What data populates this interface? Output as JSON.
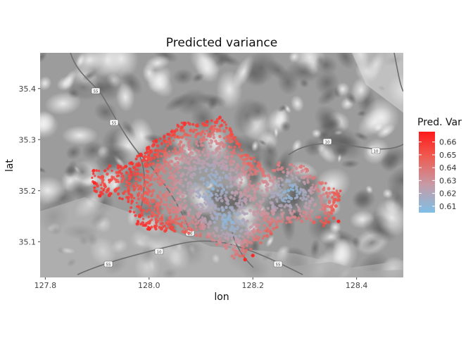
{
  "chart_data": {
    "type": "scatter",
    "title": "Predicted variance",
    "xlabel": "lon",
    "ylabel": "lat",
    "xlim": [
      127.79,
      128.49
    ],
    "ylim": [
      35.03,
      35.47
    ],
    "x_ticks": [
      127.8,
      128.0,
      128.2,
      128.4
    ],
    "y_ticks": [
      35.1,
      35.2,
      35.3,
      35.4
    ],
    "x_tick_labels": [
      "127.8",
      "128.0",
      "128.2",
      "128.4"
    ],
    "y_tick_labels": [
      "35.1",
      "35.2",
      "35.3",
      "35.4"
    ],
    "basemap": "grayscale terrain relief with roads",
    "road_shields": [
      "55",
      "55",
      "10",
      "10",
      "55",
      "10",
      "10",
      "55"
    ],
    "legend": {
      "title": "Pred. Var",
      "position": "right",
      "range": [
        0.605,
        0.668
      ],
      "ticks": [
        0.61,
        0.62,
        0.63,
        0.64,
        0.65,
        0.66
      ],
      "tick_labels": [
        "0.61",
        "0.62",
        "0.63",
        "0.64",
        "0.65",
        "0.66"
      ],
      "low_color": "#7fbfe6",
      "high_color": "#ff1a1a"
    },
    "regions": [
      {
        "name": "low-variance core",
        "lon": 128.12,
        "lat": 35.21,
        "value": 0.612
      },
      {
        "name": "low-variance east",
        "lon": 128.27,
        "lat": 35.2,
        "value": 0.614
      },
      {
        "name": "low-variance south",
        "lon": 128.15,
        "lat": 35.14,
        "value": 0.613
      },
      {
        "name": "mid band",
        "lon": 128.05,
        "lat": 35.25,
        "value": 0.628
      },
      {
        "name": "high-variance west edge",
        "lon": 127.93,
        "lat": 35.22,
        "value": 0.645
      },
      {
        "name": "high-variance north edge",
        "lon": 128.1,
        "lat": 35.33,
        "value": 0.66
      },
      {
        "name": "high-variance south-east edge",
        "lon": 128.36,
        "lat": 35.14,
        "value": 0.662
      },
      {
        "name": "high-variance south tail",
        "lon": 128.18,
        "lat": 35.07,
        "value": 0.664
      }
    ]
  }
}
